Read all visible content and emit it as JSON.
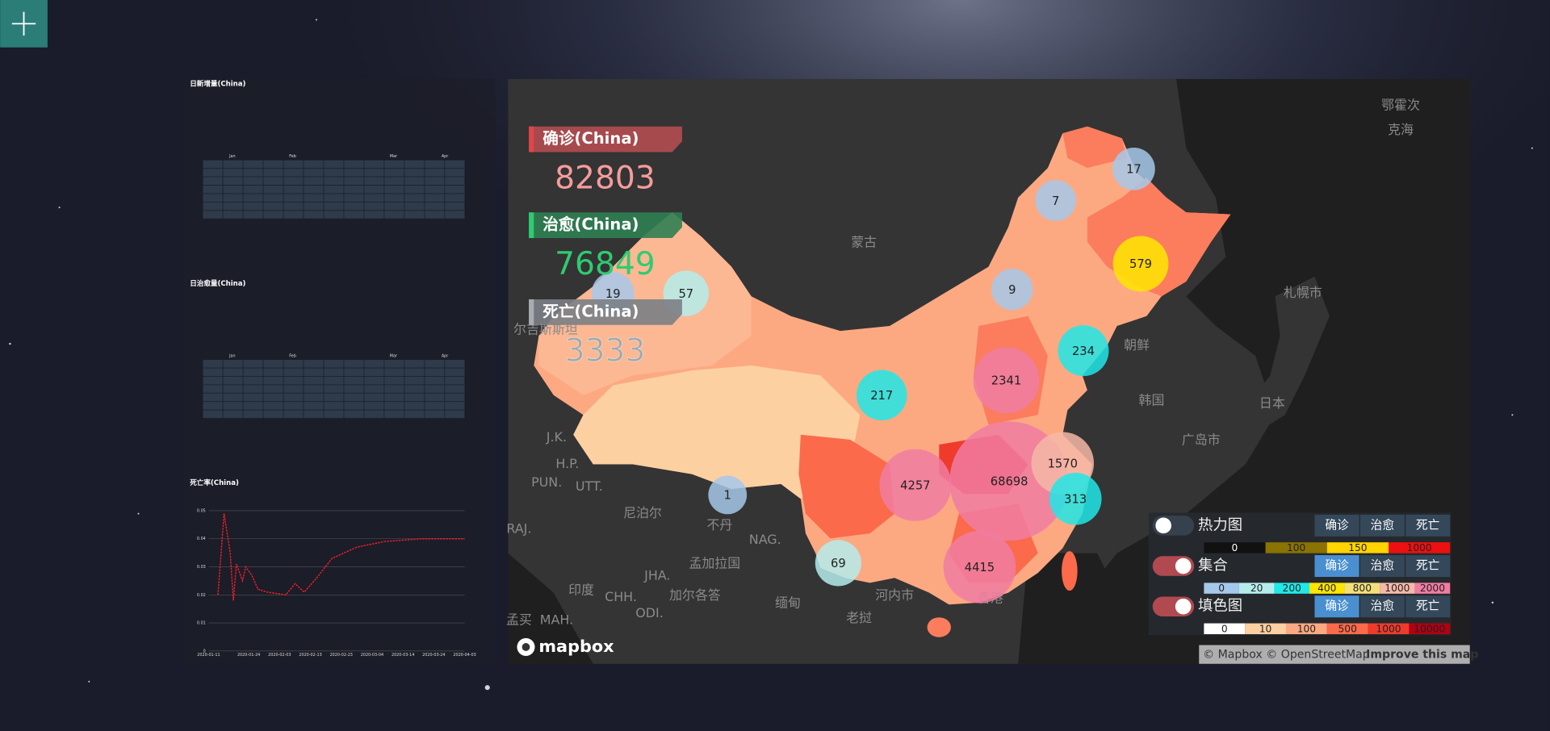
{
  "calendars": [
    {
      "title": "日新增量(China)",
      "months": [
        "Jan",
        "Feb",
        "Mar",
        "Apr"
      ]
    },
    {
      "title": "日治愈量(China)",
      "months": [
        "Jan",
        "Feb",
        "Mar",
        "Apr"
      ]
    }
  ],
  "chart_data": {
    "type": "line",
    "title": "死亡率(China)",
    "color": "#e8202a",
    "grid": true,
    "x": [
      "2020-01-14",
      "2020-01-16",
      "2020-01-18",
      "2020-01-19",
      "2020-01-20",
      "2020-01-22",
      "2020-01-23",
      "2020-01-25",
      "2020-01-27",
      "2020-01-30",
      "2020-02-05",
      "2020-02-08",
      "2020-02-11",
      "2020-02-15",
      "2020-02-20",
      "2020-02-28",
      "2020-03-08",
      "2020-03-20",
      "2020-04-03"
    ],
    "values": [
      0.02,
      0.049,
      0.035,
      0.018,
      0.031,
      0.025,
      0.03,
      0.027,
      0.022,
      0.021,
      0.02,
      0.024,
      0.021,
      0.026,
      0.033,
      0.037,
      0.039,
      0.04,
      0.04
    ],
    "xlim": [
      "2020-01-11",
      "2020-04-03"
    ],
    "xticks": [
      "2020-01-11",
      "2020-01-24",
      "2020-02-03",
      "2020-02-13",
      "2020-02-23",
      "2020-03-04",
      "2020-03-14",
      "2020-03-24",
      "2020-04-03"
    ],
    "ylim": [
      0,
      0.05
    ],
    "yticks": [
      0,
      0.01,
      0.02,
      0.03,
      0.04,
      0.05
    ]
  },
  "stats": [
    {
      "label": "确诊(China)",
      "value": 82803
    },
    {
      "label": "治愈(China)",
      "value": 76849
    },
    {
      "label": "死亡(China)",
      "value": 3333
    }
  ],
  "map": {
    "places": [
      "蒙古",
      "鄂霍次",
      "克海",
      "札幌市",
      "日本",
      "朝鲜",
      "韩国",
      "广岛市",
      "尼泊尔",
      "不丹",
      "印度",
      "孟加拉国",
      "加尔各答",
      "缅甸",
      "老挝",
      "河内市",
      "香港",
      "J.K.",
      "H.P.",
      "PUN.",
      "UTT.",
      "RAJ.",
      "NAG.",
      "JHA.",
      "CHH.",
      "MAH.",
      "ODI.",
      "孟买",
      "尔吉斯斯坦"
    ],
    "bubbles": [
      17,
      7,
      579,
      9,
      234,
      2341,
      217,
      19,
      57,
      1570,
      68698,
      4257,
      313,
      1,
      69,
      4415
    ],
    "logo": "mapbox",
    "attribution": "© Mapbox © OpenStreetMap",
    "improve": "Improve this map"
  },
  "legend": {
    "buttons": [
      "确诊",
      "治愈",
      "死亡"
    ],
    "layers": [
      {
        "name": "热力图",
        "enabled": false,
        "active_button": null,
        "stops": [
          {
            "value": 0,
            "color": "#111111"
          },
          {
            "value": 100,
            "color": "#8a7300"
          },
          {
            "value": 150,
            "color": "#ffd400"
          },
          {
            "value": 1000,
            "color": "#ee1010"
          }
        ]
      },
      {
        "name": "集合",
        "enabled": true,
        "active_button": 0,
        "stops": [
          {
            "value": 0,
            "color": "#a6c8ea"
          },
          {
            "value": 20,
            "color": "#b4ecec"
          },
          {
            "value": 200,
            "color": "#20e8e8"
          },
          {
            "value": 400,
            "color": "#ffe600"
          },
          {
            "value": 800,
            "color": "#f3e07a"
          },
          {
            "value": 1000,
            "color": "#f6b8a8"
          },
          {
            "value": 2000,
            "color": "#f07ca2"
          }
        ]
      },
      {
        "name": "填色图",
        "enabled": true,
        "active_button": 0,
        "stops": [
          {
            "value": 0,
            "color": "#ffffff"
          },
          {
            "value": 10,
            "color": "#fdd0a2"
          },
          {
            "value": 100,
            "color": "#fca982"
          },
          {
            "value": 500,
            "color": "#fb6a4a"
          },
          {
            "value": 1000,
            "color": "#ef3b2c"
          },
          {
            "value": 10000,
            "color": "#b00012"
          }
        ]
      }
    ]
  }
}
